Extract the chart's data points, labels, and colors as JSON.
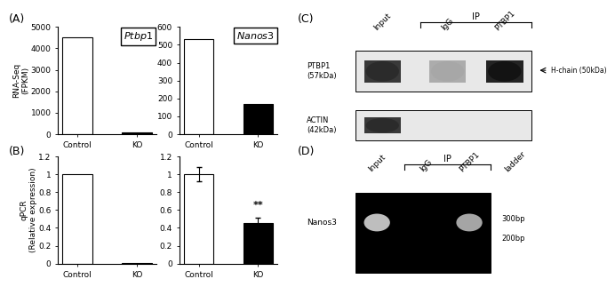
{
  "panel_A": {
    "ptbp1": {
      "categories": [
        "Control",
        "KO"
      ],
      "values": [
        4500,
        80
      ],
      "ylim": [
        0,
        5000
      ],
      "yticks": [
        0,
        1000,
        2000,
        3000,
        4000,
        5000
      ],
      "ylabel": "RNA-Seq\n(FPKM)",
      "gene_label": "Ptbp1",
      "bar_colors": [
        "white",
        "black"
      ],
      "bar_edgecolors": [
        "black",
        "black"
      ]
    },
    "nanos3": {
      "categories": [
        "Control",
        "KO"
      ],
      "values": [
        530,
        170
      ],
      "ylim": [
        0,
        600
      ],
      "yticks": [
        0,
        100,
        200,
        300,
        400,
        500,
        600
      ],
      "ylabel": "",
      "gene_label": "Nanos3",
      "bar_colors": [
        "white",
        "black"
      ],
      "bar_edgecolors": [
        "black",
        "black"
      ]
    }
  },
  "panel_B": {
    "ptbp1": {
      "categories": [
        "Control",
        "KO"
      ],
      "values": [
        1.0,
        0.01
      ],
      "errors": [
        0.0,
        0.0
      ],
      "ylim": [
        0,
        1.2
      ],
      "yticks": [
        0,
        0.2,
        0.4,
        0.6,
        0.8,
        1.0,
        1.2
      ],
      "ylabel": "qPCR\n(Relative expression)",
      "bar_colors": [
        "white",
        "black"
      ],
      "bar_edgecolors": [
        "black",
        "black"
      ]
    },
    "nanos3": {
      "categories": [
        "Control",
        "KO"
      ],
      "values": [
        1.0,
        0.45
      ],
      "errors": [
        0.08,
        0.06
      ],
      "ylim": [
        0,
        1.2
      ],
      "yticks": [
        0,
        0.2,
        0.4,
        0.6,
        0.8,
        1.0,
        1.2
      ],
      "ylabel": "",
      "significance": "**",
      "bar_colors": [
        "white",
        "black"
      ],
      "bar_edgecolors": [
        "black",
        "black"
      ]
    }
  },
  "panel_C": {
    "title": "IP",
    "col_labels": [
      "Input",
      "IgG",
      "PTBP1"
    ],
    "row_labels": [
      "PTBP1\n(57kDa)",
      "ACTIN\n(42kDa)"
    ],
    "arrow_label": "H-chain (50kDa)",
    "ptbp1_bands": [
      0.85,
      0.35,
      0.95
    ],
    "actin_bands": [
      0.85,
      0.0,
      0.0
    ]
  },
  "panel_D": {
    "title": "IP",
    "col_labels": [
      "Input",
      "IgG",
      "PTBP1",
      "ladder"
    ],
    "row_labels": [
      "Nanos3"
    ],
    "size_labels": [
      "300bp",
      "200bp"
    ],
    "bands": [
      0.75,
      0.0,
      0.65,
      0.0
    ]
  },
  "panel_labels": [
    "(A)",
    "(B)",
    "(C)",
    "(D)"
  ],
  "background_color": "#ffffff",
  "text_color": "#000000"
}
